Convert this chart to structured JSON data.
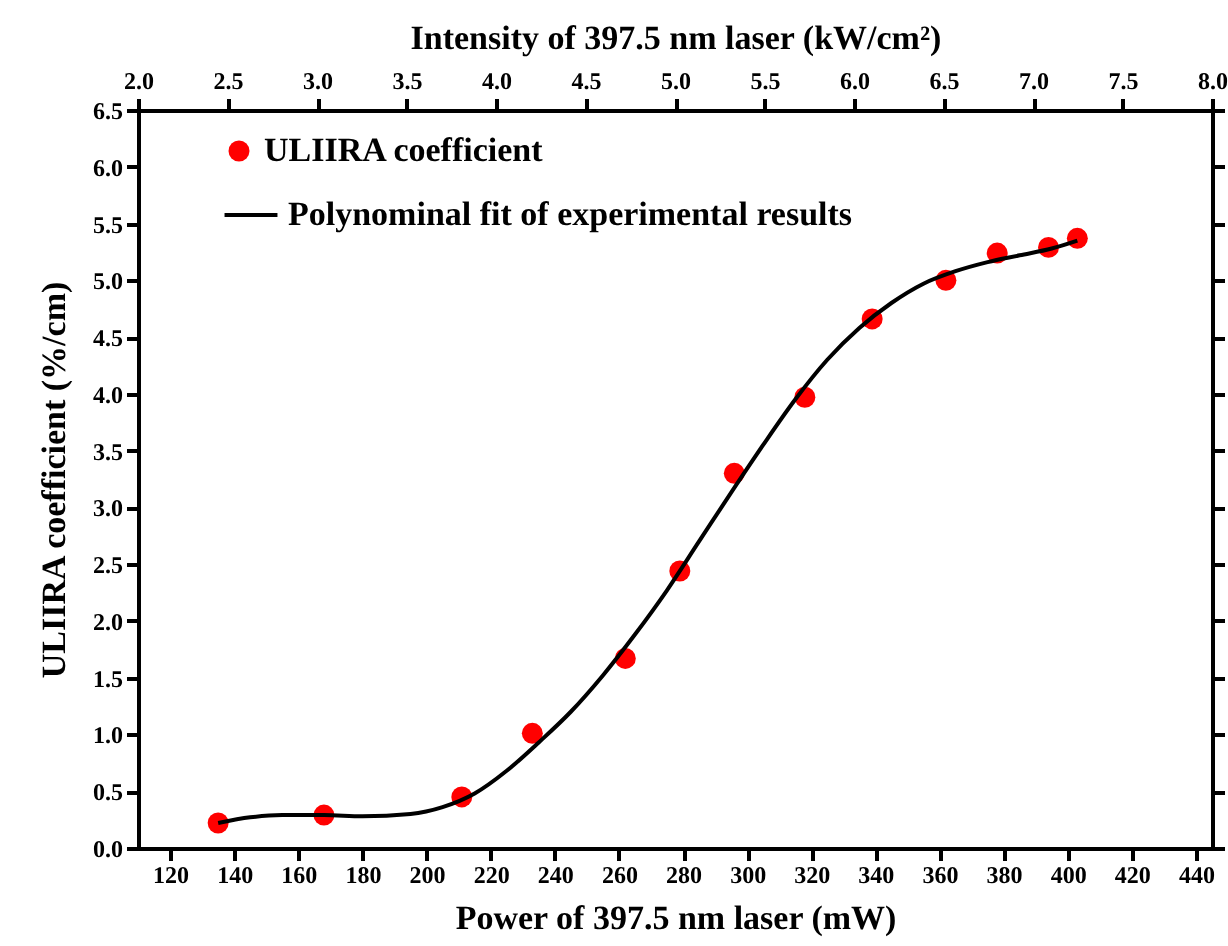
{
  "chart_data": {
    "type": "scatter",
    "xlabel": "Power of 397.5 nm laser (mW)",
    "ylabel": "ULIIRA coefficient (%/cm)",
    "x2label": "Intensity of 397.5 nm laser (kW/cm²)",
    "series": [
      {
        "name": "ULIIRA coefficient",
        "type": "scatter",
        "color": "#ff0000",
        "marker": "circle",
        "x": [
          135,
          168,
          211,
          233,
          262,
          279,
          296,
          318,
          339,
          362,
          378,
          394,
          403
        ],
        "values": [
          0.22,
          0.29,
          0.45,
          1.01,
          1.67,
          2.44,
          3.3,
          3.97,
          4.66,
          5.0,
          5.24,
          5.29,
          5.37
        ]
      },
      {
        "name": "Polynominal fit of experimental results",
        "type": "line",
        "color": "#000000",
        "line_style": "solid",
        "x": [
          135,
          145,
          155,
          168,
          180,
          195,
          205,
          215,
          225,
          235,
          245,
          255,
          265,
          275,
          285,
          295,
          305,
          315,
          325,
          335,
          345,
          355,
          365,
          375,
          385,
          395,
          403
        ],
        "values": [
          0.22,
          0.27,
          0.29,
          0.29,
          0.28,
          0.3,
          0.36,
          0.48,
          0.68,
          0.93,
          1.2,
          1.52,
          1.88,
          2.27,
          2.7,
          3.13,
          3.55,
          3.95,
          4.3,
          4.58,
          4.8,
          4.97,
          5.08,
          5.16,
          5.22,
          5.28,
          5.35
        ]
      }
    ],
    "xlim": [
      110,
      445
    ],
    "xticks": [
      120,
      140,
      160,
      180,
      200,
      220,
      240,
      260,
      280,
      300,
      320,
      340,
      360,
      380,
      400,
      420,
      440
    ],
    "x2lim": [
      2.0,
      8.0
    ],
    "x2ticks": [
      {
        "value": 2.0,
        "label": "2.0"
      },
      2.5,
      {
        "value": 3.0,
        "label": "3.0"
      },
      3.5,
      {
        "value": 4.0,
        "label": "4.0"
      },
      4.5,
      {
        "value": 5.0,
        "label": "5.0"
      },
      5.5,
      {
        "value": 6.0,
        "label": "6.0"
      },
      6.5,
      {
        "value": 7.0,
        "label": "7.0"
      },
      7.5,
      {
        "value": 8.0,
        "label": "8.0"
      }
    ],
    "ylim": [
      0,
      6.5
    ],
    "yticks": [
      {
        "value": 0,
        "label": "0.0"
      },
      0.5,
      {
        "value": 1,
        "label": "1.0"
      },
      1.5,
      {
        "value": 2,
        "label": "2.0"
      },
      2.5,
      {
        "value": 3,
        "label": "3.0"
      },
      3.5,
      {
        "value": 4,
        "label": "4.0"
      },
      4.5,
      {
        "value": 5,
        "label": "5.0"
      },
      5.5,
      {
        "value": 6,
        "label": "6.0"
      },
      6.5
    ],
    "grid": false,
    "legend": "top left"
  }
}
